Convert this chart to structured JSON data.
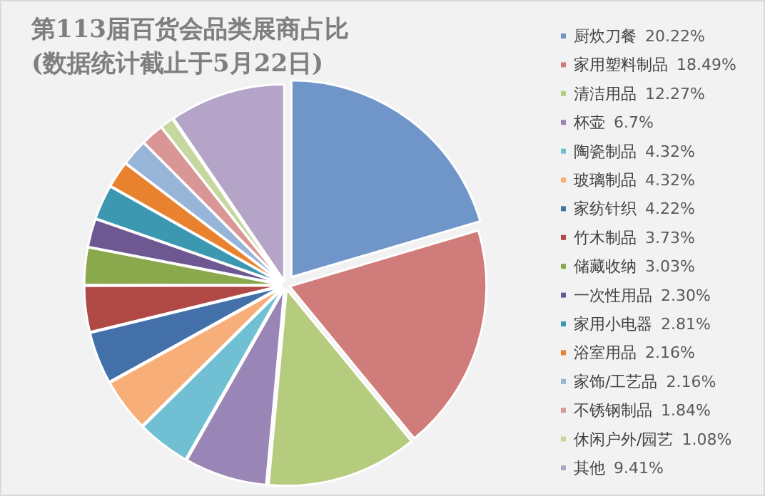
{
  "chart_data": {
    "type": "pie",
    "title": "第113届百货会品类展商占比",
    "subtitle": "(数据统计截止于5月22日)",
    "legend": "right",
    "categories": [
      "厨炊刀餐",
      "家用塑料制品",
      "清洁用品",
      "杯壶",
      "陶瓷制品",
      "玻璃制品",
      "家纺针织",
      "竹木制品",
      "储藏收纳",
      "一次性用品",
      "家用小电器",
      "浴室用品",
      "家饰/工艺品",
      "不锈钢制品",
      "休闲户外/园艺",
      "其他"
    ],
    "values": [
      20.22,
      18.49,
      12.27,
      6.7,
      4.32,
      4.32,
      4.22,
      3.73,
      3.03,
      2.3,
      2.81,
      2.16,
      2.16,
      1.84,
      1.08,
      9.41
    ],
    "value_labels": [
      "20.22%",
      "18.49%",
      "12.27%",
      "6.7%",
      "4.32%",
      "4.32%",
      "4.22%",
      "3.73%",
      "3.03%",
      "2.30%",
      "2.81%",
      "2.16%",
      "2.16%",
      "1.84%",
      "1.08%",
      "9.41%"
    ],
    "colors": [
      "#7096c9",
      "#d07c7a",
      "#b5cc7e",
      "#9a86b6",
      "#71bfd3",
      "#f8ae78",
      "#4470aa",
      "#b04945",
      "#8aa84c",
      "#6e5892",
      "#3c98b0",
      "#e8822f",
      "#97b4d9",
      "#d99694",
      "#c6d8a0",
      "#b4a4c8"
    ]
  }
}
